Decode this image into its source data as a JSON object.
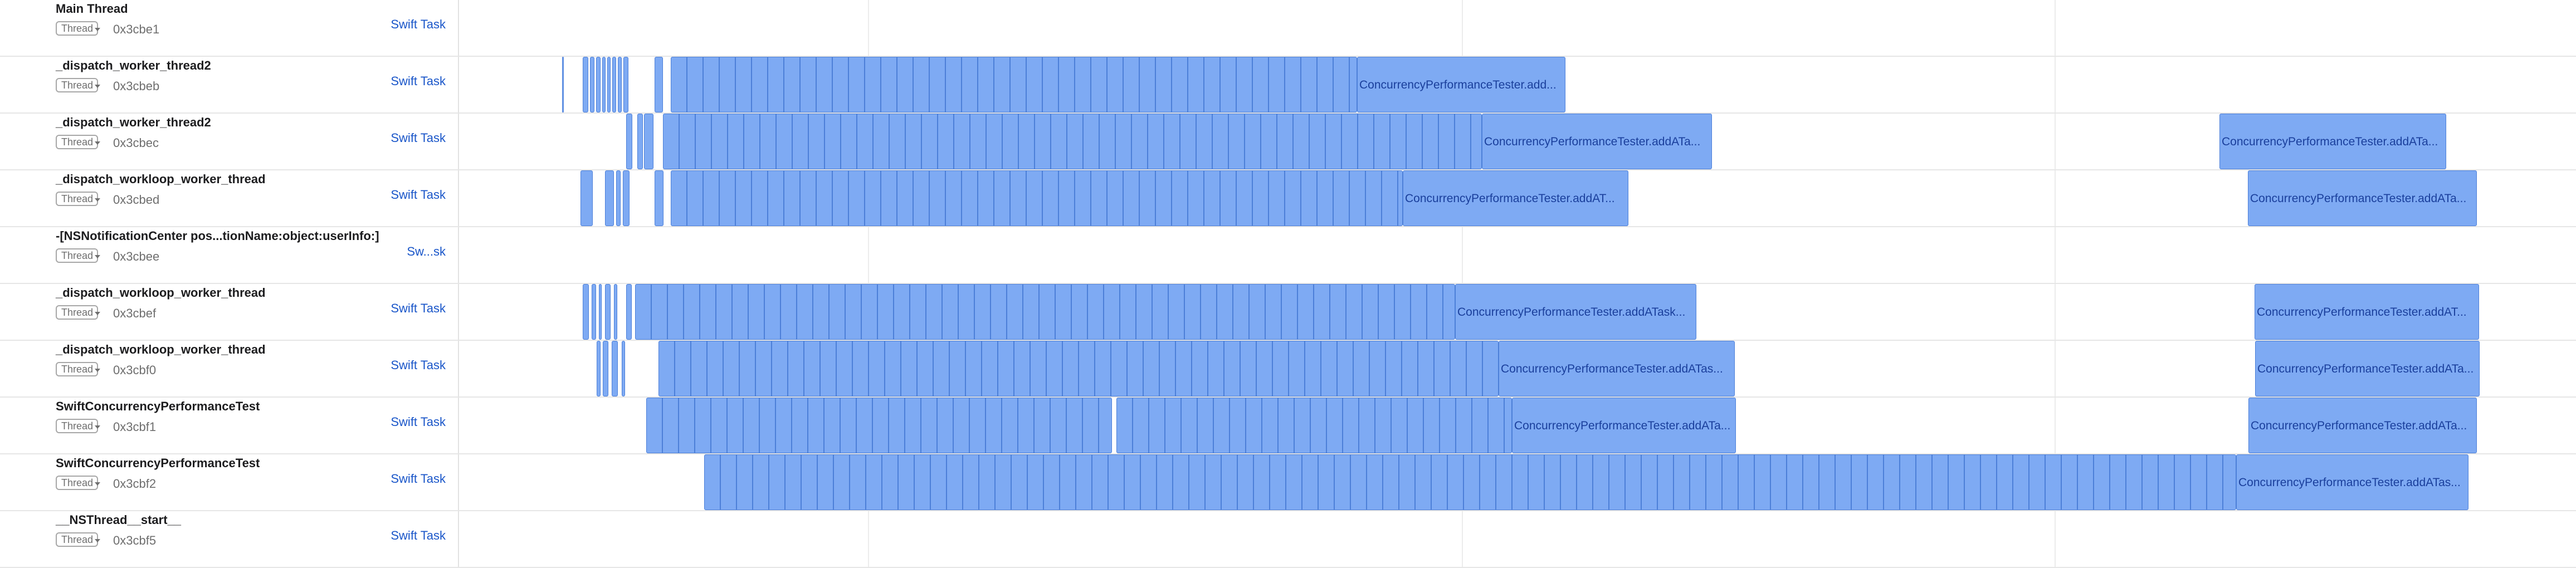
{
  "rows": [
    {
      "title": "Main Thread",
      "badge": "Thread",
      "id": "0x3cbe1",
      "task": "Swift Task",
      "labels": []
    },
    {
      "title": "_dispatch_worker_thread2",
      "badge": "Thread",
      "id": "0x3cbeb",
      "task": "Swift Task",
      "labels": [
        "ConcurrencyPerformanceTester.add..."
      ]
    },
    {
      "title": "_dispatch_worker_thread2",
      "badge": "Thread",
      "id": "0x3cbec",
      "task": "Swift Task",
      "labels": [
        "ConcurrencyPerformanceTester.addATa...",
        "ConcurrencyPerformanceTester.addATa..."
      ]
    },
    {
      "title": "_dispatch_workloop_worker_thread",
      "badge": "Thread",
      "id": "0x3cbed",
      "task": "Swift Task",
      "labels": [
        "ConcurrencyPerformanceTester.addAT...",
        "ConcurrencyPerformanceTester.addATa..."
      ]
    },
    {
      "title": "-[NSNotificationCenter pos...tionName:object:userInfo:]",
      "badge": "Thread",
      "id": "0x3cbee",
      "task": "Sw...sk",
      "labels": []
    },
    {
      "title": "_dispatch_workloop_worker_thread",
      "badge": "Thread",
      "id": "0x3cbef",
      "task": "Swift Task",
      "labels": [
        "ConcurrencyPerformanceTester.addATask...",
        "ConcurrencyPerformanceTester.addAT..."
      ]
    },
    {
      "title": "_dispatch_workloop_worker_thread",
      "badge": "Thread",
      "id": "0x3cbf0",
      "task": "Swift Task",
      "labels": [
        "ConcurrencyPerformanceTester.addATas...",
        "ConcurrencyPerformanceTester.addATa..."
      ]
    },
    {
      "title": "SwiftConcurrencyPerformanceTest",
      "badge": "Thread",
      "id": "0x3cbf1",
      "task": "Swift Task",
      "labels": [
        "ConcurrencyPerformanceTester.addATa...",
        "ConcurrencyPerformanceTester.addATa..."
      ]
    },
    {
      "title": "SwiftConcurrencyPerformanceTest",
      "badge": "Thread",
      "id": "0x3cbf2",
      "task": "Swift Task",
      "labels": [
        "ConcurrencyPerformanceTester.addATas..."
      ]
    },
    {
      "title": "__NSThread__start__",
      "badge": "Thread",
      "id": "0x3cbf5",
      "task": "Swift Task",
      "labels": []
    }
  ],
  "colors": {
    "interval_fill": "#7eaaf3",
    "interval_border": "#4c7fd8",
    "link": "#1a56c9"
  }
}
